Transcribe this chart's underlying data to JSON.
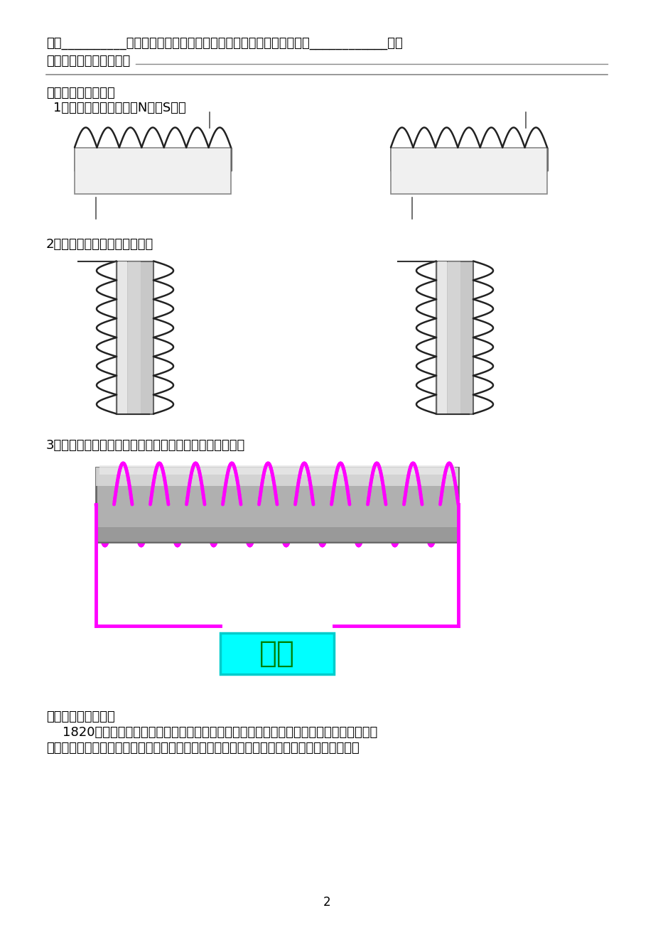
{
  "bg_color": "#ffffff",
  "text_color": "#000000",
  "line1": "性跟__________有关。通电螺线管的磁性跟电流的方向之间的关系可用____________来判",
  "line2": "定，安培定则的内容是：",
  "section3": "（三）、巩固练习：",
  "q1": "1．判断下面螺线管中的N极和S极：",
  "q2": "2．判断螺线管中的电流方向：",
  "q3": "3．根据小磁针静止时指针的指向，判断出电源的正负极。",
  "section4": "（四）、拓展延伸：",
  "para4_1": "    1820年，安培在科学院的例会上做了一个小实验引起到会的科学家的兴趣：把螺线管水平",
  "para4_2": "悬挂起来，然后给导线通电，想一想会发生什么现象？实际做一做，看看你的判断是否正确。",
  "page_num": "2",
  "magenta_color": "#FF00FF",
  "cyan_color": "#00FFFF",
  "cyan_border": "#00CCCC",
  "source_text": "申源",
  "source_color": "#008000"
}
